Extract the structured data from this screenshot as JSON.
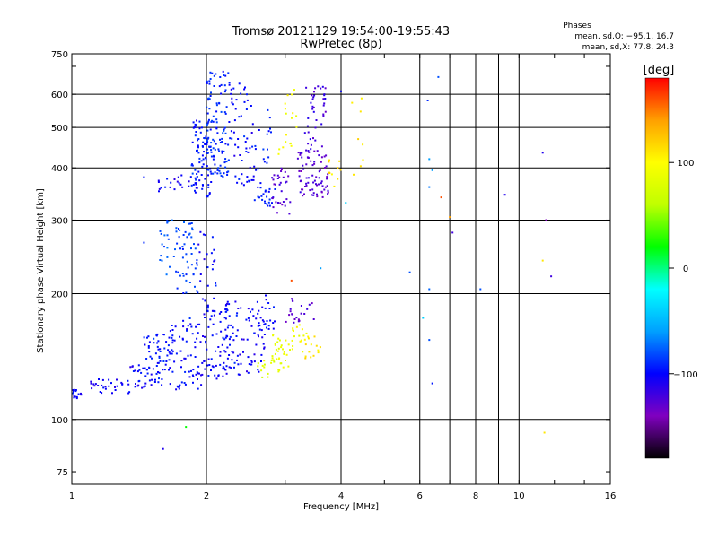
{
  "chart_data": {
    "type": "scatter",
    "title": "Tromsø 20121129 19:54:00-19:55:43",
    "subtitle": "RwPretec (8p)",
    "xlabel": "Frequency [MHz]",
    "ylabel": "Stationary phase Virtual Height [km]",
    "x_scale": "log",
    "y_scale": "log",
    "xlim": [
      1,
      16
    ],
    "ylim": [
      70,
      750
    ],
    "x_ticks": [
      1,
      2,
      4,
      6,
      8,
      10,
      16
    ],
    "x_ticklabels": [
      "1",
      "2",
      "4",
      "6",
      "8",
      "10",
      "16"
    ],
    "x_grid": [
      2,
      4,
      6,
      7,
      8,
      9,
      10
    ],
    "y_ticks": [
      75,
      100,
      200,
      300,
      400,
      500,
      600,
      750
    ],
    "y_ticklabels": [
      "75",
      "100",
      "200",
      "300",
      "400",
      "500",
      "600",
      "750"
    ],
    "y_grid": [
      100,
      200,
      300,
      400,
      500,
      600
    ],
    "grid": true,
    "stats": {
      "header": "Phases",
      "line_o": "mean, sd,O: −95.1, 16.7",
      "line_x": "mean, sd,X:  77.8, 24.3"
    },
    "colorbar": {
      "label": "[deg]",
      "range": [
        -180,
        180
      ],
      "ticks": [
        100,
        0,
        -100
      ],
      "tick_labels": [
        "100",
        "0",
        "−100"
      ],
      "colors": [
        "#000000",
        "#8000c0",
        "#0000ff",
        "#00a0ff",
        "#00ffff",
        "#00ff00",
        "#c0ff00",
        "#ffff00",
        "#ffa000",
        "#ff0000"
      ]
    },
    "clusters": [
      {
        "f": [
          1.0,
          1.05
        ],
        "h": [
          112,
          118
        ],
        "phase": -105,
        "count": 14
      },
      {
        "f": [
          1.1,
          1.35
        ],
        "h": [
          115,
          125
        ],
        "phase": -105,
        "count": 30
      },
      {
        "f": [
          1.35,
          1.6
        ],
        "h": [
          118,
          135
        ],
        "phase": -100,
        "count": 40
      },
      {
        "f": [
          1.45,
          1.72
        ],
        "h": [
          130,
          160
        ],
        "phase": -95,
        "count": 45
      },
      {
        "f": [
          1.65,
          1.95
        ],
        "h": [
          118,
          175
        ],
        "phase": -100,
        "count": 75
      },
      {
        "f": [
          1.95,
          2.35
        ],
        "h": [
          125,
          195
        ],
        "phase": -100,
        "count": 110
      },
      {
        "f": [
          2.35,
          2.7
        ],
        "h": [
          125,
          185
        ],
        "phase": -105,
        "count": 50
      },
      {
        "f": [
          2.6,
          2.8
        ],
        "h": [
          125,
          140
        ],
        "phase": 75,
        "count": 12
      },
      {
        "f": [
          2.8,
          3.1
        ],
        "h": [
          130,
          165
        ],
        "phase": 85,
        "count": 35
      },
      {
        "f": [
          3.1,
          3.35
        ],
        "h": [
          145,
          170
        ],
        "phase": 95,
        "count": 18
      },
      {
        "f": [
          3.3,
          3.6
        ],
        "h": [
          140,
          160
        ],
        "phase": 110,
        "count": 14
      },
      {
        "f": [
          2.6,
          2.85
        ],
        "h": [
          160,
          200
        ],
        "phase": -100,
        "count": 22
      },
      {
        "f": [
          3.0,
          3.55
        ],
        "h": [
          170,
          195
        ],
        "phase": -125,
        "count": 22
      },
      {
        "f": [
          1.7,
          1.92
        ],
        "h": [
          200,
          300
        ],
        "phase": -85,
        "count": 50
      },
      {
        "f": [
          1.55,
          1.72
        ],
        "h": [
          220,
          300
        ],
        "phase": -80,
        "count": 22
      },
      {
        "f": [
          1.92,
          2.1
        ],
        "h": [
          205,
          290
        ],
        "phase": -100,
        "count": 20
      },
      {
        "f": [
          1.55,
          1.85
        ],
        "h": [
          350,
          385
        ],
        "phase": -105,
        "count": 20
      },
      {
        "f": [
          1.85,
          2.05
        ],
        "h": [
          340,
          520
        ],
        "phase": -95,
        "count": 90
      },
      {
        "f": [
          2.0,
          2.25
        ],
        "h": [
          380,
          680
        ],
        "phase": -90,
        "count": 110
      },
      {
        "f": [
          2.25,
          2.55
        ],
        "h": [
          360,
          650
        ],
        "phase": -100,
        "count": 55
      },
      {
        "f": [
          2.55,
          2.8
        ],
        "h": [
          330,
          560
        ],
        "phase": -95,
        "count": 25
      },
      {
        "f": [
          2.6,
          2.85
        ],
        "h": [
          320,
          360
        ],
        "phase": -95,
        "count": 18
      },
      {
        "f": [
          2.8,
          3.1
        ],
        "h": [
          310,
          400
        ],
        "phase": -125,
        "count": 32
      },
      {
        "f": [
          2.9,
          3.2
        ],
        "h": [
          420,
          620
        ],
        "phase": 95,
        "count": 18
      },
      {
        "f": [
          3.2,
          3.75
        ],
        "h": [
          340,
          440
        ],
        "phase": -125,
        "count": 75
      },
      {
        "f": [
          3.3,
          3.7
        ],
        "h": [
          440,
          640
        ],
        "phase": -120,
        "count": 40
      },
      {
        "f": [
          3.75,
          4.0
        ],
        "h": [
          360,
          420
        ],
        "phase": 115,
        "count": 10
      },
      {
        "f": [
          4.2,
          4.5
        ],
        "h": [
          380,
          610
        ],
        "phase": 110,
        "count": 8
      }
    ],
    "points": [
      {
        "f": 1.45,
        "h": 380,
        "phase": -95
      },
      {
        "f": 1.45,
        "h": 265,
        "phase": -90
      },
      {
        "f": 1.6,
        "h": 85,
        "phase": -110
      },
      {
        "f": 1.8,
        "h": 96,
        "phase": 20
      },
      {
        "f": 4.0,
        "h": 610,
        "phase": -100
      },
      {
        "f": 4.1,
        "h": 330,
        "phase": -40
      },
      {
        "f": 3.6,
        "h": 230,
        "phase": -60
      },
      {
        "f": 3.1,
        "h": 215,
        "phase": 160
      },
      {
        "f": 5.7,
        "h": 225,
        "phase": -80
      },
      {
        "f": 6.1,
        "h": 175,
        "phase": -40
      },
      {
        "f": 6.25,
        "h": 580,
        "phase": -90
      },
      {
        "f": 6.3,
        "h": 420,
        "phase": -60
      },
      {
        "f": 6.3,
        "h": 360,
        "phase": -70
      },
      {
        "f": 6.4,
        "h": 395,
        "phase": -60
      },
      {
        "f": 6.3,
        "h": 205,
        "phase": -75
      },
      {
        "f": 6.3,
        "h": 155,
        "phase": -80
      },
      {
        "f": 6.4,
        "h": 122,
        "phase": -95
      },
      {
        "f": 6.6,
        "h": 660,
        "phase": -80
      },
      {
        "f": 6.7,
        "h": 340,
        "phase": 160
      },
      {
        "f": 7.0,
        "h": 305,
        "phase": 140
      },
      {
        "f": 7.1,
        "h": 280,
        "phase": -120
      },
      {
        "f": 8.2,
        "h": 205,
        "phase": -80
      },
      {
        "f": 9.3,
        "h": 345,
        "phase": -110
      },
      {
        "f": 11.3,
        "h": 435,
        "phase": -110
      },
      {
        "f": 11.5,
        "h": 300,
        "phase": -140
      },
      {
        "f": 11.3,
        "h": 240,
        "phase": 110
      },
      {
        "f": 11.4,
        "h": 93,
        "phase": 110
      },
      {
        "f": 11.8,
        "h": 220,
        "phase": -120
      }
    ]
  }
}
